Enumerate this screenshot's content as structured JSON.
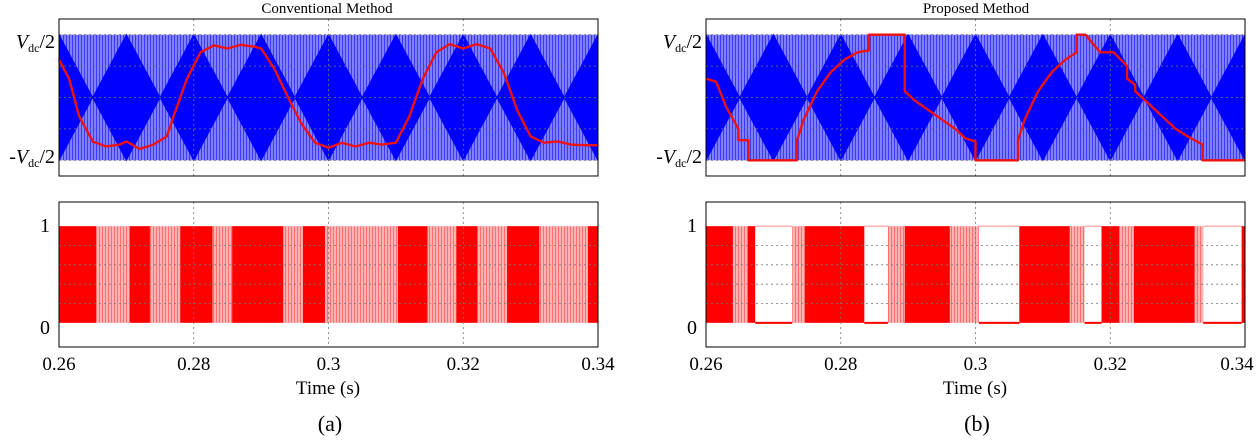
{
  "chart_data": [
    {
      "panel": "(a)",
      "title": "Conventional Method",
      "xlabel": "Time (s)",
      "type": "line",
      "xlim": [
        0.26,
        0.34
      ],
      "x_ticks": [
        "0.26",
        "0.28",
        "0.3",
        "0.32",
        "0.34"
      ],
      "carrier_color": "#0000ff",
      "reference_color": "#ee1111",
      "pulse_color": "#ff0000",
      "pulse_light_color": "#ff9a9a",
      "top_plot": {
        "y_tick_labels": [
          {
            "prefix": "",
            "main": "V",
            "sub": "dc",
            "suffix": "/2"
          },
          {
            "prefix": "-",
            "main": "V",
            "sub": "dc",
            "suffix": "/2"
          }
        ],
        "ylim": [
          -1.25,
          1.25
        ],
        "carrier": {
          "type": "triangle",
          "period": 0.02,
          "envelope": [
            -1,
            1
          ]
        },
        "reference": {
          "x": [
            0.26,
            0.2615,
            0.263,
            0.265,
            0.267,
            0.269,
            0.27,
            0.272,
            0.274,
            0.276,
            0.277,
            0.279,
            0.281,
            0.283,
            0.285,
            0.287,
            0.289,
            0.29,
            0.292,
            0.294,
            0.296,
            0.298,
            0.3,
            0.302,
            0.304,
            0.306,
            0.308,
            0.31,
            0.312,
            0.314,
            0.316,
            0.318,
            0.32,
            0.322,
            0.324,
            0.326,
            0.328,
            0.33,
            0.332,
            0.334,
            0.336,
            0.338,
            0.34
          ],
          "y": [
            0.6,
            0.3,
            -0.3,
            -0.7,
            -0.78,
            -0.75,
            -0.7,
            -0.82,
            -0.75,
            -0.62,
            -0.3,
            0.3,
            0.72,
            0.83,
            0.78,
            0.84,
            0.81,
            0.78,
            0.45,
            0.0,
            -0.42,
            -0.72,
            -0.8,
            -0.72,
            -0.78,
            -0.72,
            -0.75,
            -0.72,
            -0.3,
            0.3,
            0.72,
            0.85,
            0.78,
            0.85,
            0.78,
            0.4,
            -0.2,
            -0.62,
            -0.72,
            -0.7,
            -0.75,
            -0.76,
            -0.76
          ]
        }
      },
      "bottom_plot": {
        "y_ticks": [
          "0",
          "1"
        ],
        "ylim": [
          -0.25,
          1.25
        ],
        "segments": [
          {
            "start": 0.26,
            "end": 0.2655,
            "level": 1
          },
          {
            "start": 0.2655,
            "end": 0.2705,
            "level": 0.5
          },
          {
            "start": 0.2705,
            "end": 0.2735,
            "level": 1
          },
          {
            "start": 0.2735,
            "end": 0.278,
            "level": 0.5
          },
          {
            "start": 0.278,
            "end": 0.2828,
            "level": 1
          },
          {
            "start": 0.2828,
            "end": 0.2857,
            "level": 0.5
          },
          {
            "start": 0.2857,
            "end": 0.2933,
            "level": 1
          },
          {
            "start": 0.2933,
            "end": 0.2962,
            "level": 0.5
          },
          {
            "start": 0.2962,
            "end": 0.2995,
            "level": 1
          },
          {
            "start": 0.2995,
            "end": 0.3103,
            "level": 0.5
          },
          {
            "start": 0.3103,
            "end": 0.3147,
            "level": 1
          },
          {
            "start": 0.3147,
            "end": 0.319,
            "level": 0.5
          },
          {
            "start": 0.319,
            "end": 0.3221,
            "level": 1
          },
          {
            "start": 0.3221,
            "end": 0.3265,
            "level": 0.5
          },
          {
            "start": 0.3265,
            "end": 0.3313,
            "level": 1
          },
          {
            "start": 0.3313,
            "end": 0.3385,
            "level": 0.5
          },
          {
            "start": 0.3385,
            "end": 0.34,
            "level": 1
          }
        ]
      }
    },
    {
      "panel": "(b)",
      "title": "Proposed Method",
      "xlabel": "Time (s)",
      "type": "line",
      "xlim": [
        0.26,
        0.34
      ],
      "x_ticks": [
        "0.26",
        "0.28",
        "0.3",
        "0.32",
        "0.34"
      ],
      "carrier_color": "#0000ff",
      "reference_color": "#ee1111",
      "pulse_color": "#ff0000",
      "pulse_light_color": "#ff9a9a",
      "top_plot": {
        "y_tick_labels": [
          {
            "prefix": "",
            "main": "V",
            "sub": "dc",
            "suffix": "/2"
          },
          {
            "prefix": "-",
            "main": "V",
            "sub": "dc",
            "suffix": "/2"
          }
        ],
        "ylim": [
          -1.25,
          1.25
        ],
        "carrier": {
          "type": "triangle",
          "period": 0.02,
          "envelope": [
            -1,
            1
          ]
        },
        "reference": {
          "x": [
            0.26,
            0.2615,
            0.263,
            0.2648,
            0.2648,
            0.2663,
            0.2663,
            0.2735,
            0.2735,
            0.2745,
            0.2765,
            0.2785,
            0.2805,
            0.2825,
            0.2842,
            0.2842,
            0.2895,
            0.2895,
            0.291,
            0.293,
            0.295,
            0.297,
            0.2985,
            0.3,
            0.3,
            0.3063,
            0.3063,
            0.3073,
            0.3093,
            0.3113,
            0.3133,
            0.315,
            0.315,
            0.3163,
            0.3185,
            0.3205,
            0.3225,
            0.3225,
            0.3237,
            0.3237,
            0.3257,
            0.3277,
            0.3297,
            0.3315,
            0.3337,
            0.3337,
            0.34
          ],
          "y": [
            0.3,
            0.25,
            -0.15,
            -0.5,
            -0.68,
            -0.68,
            -1.0,
            -1.0,
            -0.68,
            -0.35,
            0.1,
            0.4,
            0.6,
            0.72,
            0.75,
            1.0,
            1.0,
            0.1,
            -0.05,
            -0.2,
            -0.35,
            -0.5,
            -0.65,
            -0.7,
            -1.0,
            -1.0,
            -0.68,
            -0.35,
            0.1,
            0.4,
            0.6,
            0.72,
            1.0,
            1.0,
            0.72,
            0.72,
            0.5,
            0.3,
            0.2,
            0.1,
            -0.1,
            -0.3,
            -0.5,
            -0.62,
            -0.75,
            -1.0,
            -1.0
          ]
        }
      },
      "bottom_plot": {
        "y_ticks": [
          "0",
          "1"
        ],
        "ylim": [
          -0.25,
          1.25
        ],
        "segments": [
          {
            "start": 0.26,
            "end": 0.264,
            "level": 1
          },
          {
            "start": 0.264,
            "end": 0.2662,
            "level": 0.5
          },
          {
            "start": 0.2662,
            "end": 0.2673,
            "level": 1
          },
          {
            "start": 0.2673,
            "end": 0.2728,
            "level": 0
          },
          {
            "start": 0.2728,
            "end": 0.2747,
            "level": 0.5
          },
          {
            "start": 0.2747,
            "end": 0.2835,
            "level": 1
          },
          {
            "start": 0.2835,
            "end": 0.287,
            "level": 0
          },
          {
            "start": 0.287,
            "end": 0.2895,
            "level": 0.5
          },
          {
            "start": 0.2895,
            "end": 0.2962,
            "level": 1
          },
          {
            "start": 0.2962,
            "end": 0.3005,
            "level": 0.5
          },
          {
            "start": 0.3005,
            "end": 0.3065,
            "level": 0
          },
          {
            "start": 0.3065,
            "end": 0.314,
            "level": 1
          },
          {
            "start": 0.314,
            "end": 0.3162,
            "level": 0.5
          },
          {
            "start": 0.3162,
            "end": 0.3187,
            "level": 0
          },
          {
            "start": 0.3187,
            "end": 0.3213,
            "level": 1
          },
          {
            "start": 0.3213,
            "end": 0.3235,
            "level": 0.5
          },
          {
            "start": 0.3235,
            "end": 0.3325,
            "level": 1
          },
          {
            "start": 0.3325,
            "end": 0.3338,
            "level": 0.5
          },
          {
            "start": 0.3338,
            "end": 0.3395,
            "level": 0
          },
          {
            "start": 0.3395,
            "end": 0.34,
            "level": 1
          }
        ]
      }
    }
  ]
}
